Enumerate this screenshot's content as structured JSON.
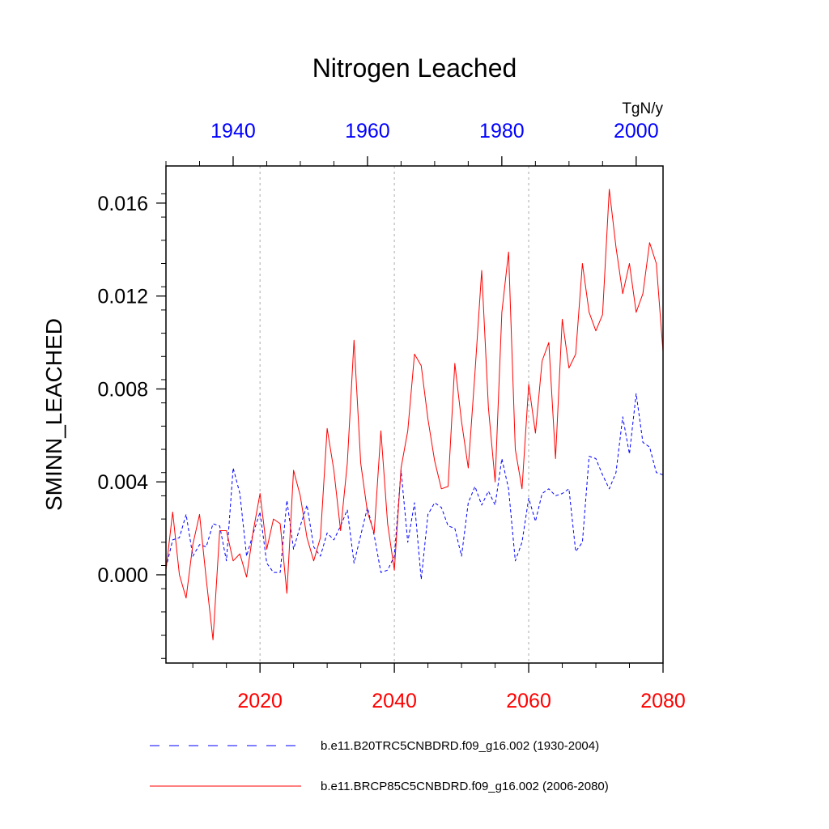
{
  "chart_data": {
    "type": "line",
    "title": "Nitrogen Leached",
    "ylabel": "SMINN_LEACHED",
    "units": "TgN/y",
    "ylim": [
      -0.0038,
      0.0176
    ],
    "yticks": [
      0.0,
      0.004,
      0.008,
      0.012,
      0.016
    ],
    "ytick_labels": [
      "0.000",
      "0.004",
      "0.008",
      "0.012",
      "0.016"
    ],
    "grid": "vertical dotted lines at major bottom ticks",
    "bottom_axis": {
      "xlim": [
        2006,
        2080
      ],
      "ticks": [
        2020,
        2040,
        2060,
        2080
      ],
      "tick_labels": [
        "2020",
        "2040",
        "2060",
        "2080"
      ],
      "color": "#ff0000"
    },
    "top_axis": {
      "xlim": [
        1930,
        2004
      ],
      "ticks": [
        1940,
        1960,
        1980,
        2000
      ],
      "tick_labels": [
        "1940",
        "1960",
        "1980",
        "2000"
      ],
      "color": "#0000ff"
    },
    "series": [
      {
        "name": "b.e11.B20TRC5CNBDRD.f09_g16.002 (1930-2004)",
        "axis": "top",
        "color": "#0000ff",
        "dash": "dashed",
        "x_start": 1930,
        "values": [
          0.0003,
          0.0015,
          0.0016,
          0.0026,
          0.0008,
          0.0013,
          0.0012,
          0.0022,
          0.0021,
          0.0006,
          0.0046,
          0.0035,
          0.0008,
          0.0018,
          0.0027,
          0.0005,
          0.0001,
          0.0001,
          0.0032,
          0.0011,
          0.0021,
          0.003,
          0.0012,
          0.0008,
          0.0018,
          0.0015,
          0.0021,
          0.0028,
          0.0005,
          0.0017,
          0.0029,
          0.0017,
          0.0001,
          0.0002,
          0.0008,
          0.0045,
          0.0014,
          0.0031,
          -0.0002,
          0.0026,
          0.0031,
          0.0029,
          0.0021,
          0.002,
          0.0008,
          0.0031,
          0.0038,
          0.003,
          0.0036,
          0.003,
          0.005,
          0.0037,
          0.0006,
          0.0014,
          0.0033,
          0.0023,
          0.0035,
          0.0037,
          0.0034,
          0.0035,
          0.0037,
          0.001,
          0.0014,
          0.0051,
          0.005,
          0.0043,
          0.0037,
          0.0044,
          0.0068,
          0.0052,
          0.0078,
          0.0057,
          0.0055,
          0.0044,
          0.0043
        ]
      },
      {
        "name": "b.e11.BRCP85C5CNBDRD.f09_g16.002 (2006-2080)",
        "axis": "bottom",
        "color": "#ff0000",
        "dash": "solid",
        "x_start": 2006,
        "values": [
          0.0002,
          0.0027,
          0.0,
          -0.001,
          0.0013,
          0.0026,
          -0.0002,
          -0.0028,
          0.0019,
          0.0019,
          0.0006,
          0.0009,
          -0.0001,
          0.0019,
          0.0035,
          0.0011,
          0.0024,
          0.0022,
          -0.0008,
          0.0045,
          0.0034,
          0.0016,
          0.0006,
          0.0016,
          0.0063,
          0.0045,
          0.0019,
          0.0048,
          0.0101,
          0.0048,
          0.0027,
          0.0018,
          0.0062,
          0.0022,
          0.0002,
          0.0046,
          0.0062,
          0.0095,
          0.009,
          0.0067,
          0.0049,
          0.0037,
          0.0038,
          0.0091,
          0.0066,
          0.0046,
          0.0087,
          0.0131,
          0.0072,
          0.004,
          0.0113,
          0.0139,
          0.0054,
          0.0037,
          0.0082,
          0.0061,
          0.0092,
          0.01,
          0.005,
          0.011,
          0.0089,
          0.0095,
          0.0134,
          0.0113,
          0.0105,
          0.0112,
          0.0166,
          0.0141,
          0.0121,
          0.0134,
          0.0113,
          0.0121,
          0.0143,
          0.0134,
          0.0096
        ]
      }
    ]
  }
}
